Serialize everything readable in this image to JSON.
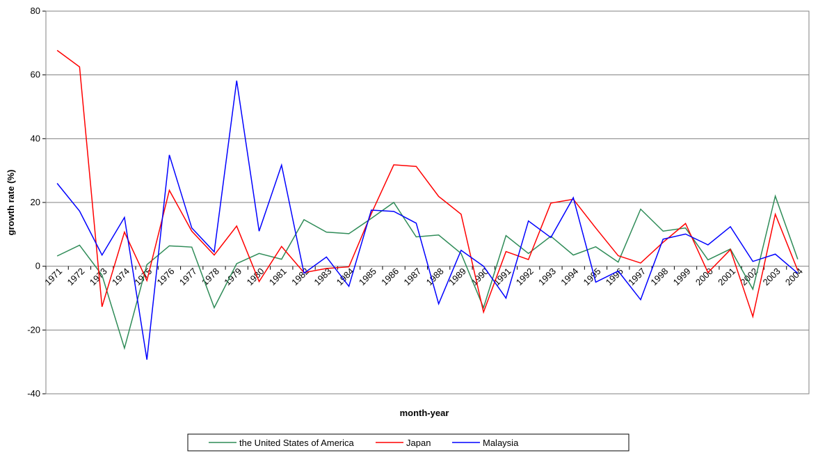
{
  "chart_data": {
    "type": "line",
    "x_label": "month-year",
    "y_label": "growth rate (%)",
    "categories": [
      "1971",
      "1972",
      "1973",
      "1974",
      "1975",
      "1976",
      "1977",
      "1978",
      "1979",
      "1980",
      "1981",
      "1982",
      "1983",
      "1984",
      "1985",
      "1986",
      "1987",
      "1988",
      "1989",
      "1990",
      "1991",
      "1992",
      "1993",
      "1994",
      "1995",
      "1996",
      "1997",
      "1998",
      "1999",
      "2000",
      "2001",
      "2002",
      "2003",
      "2004"
    ],
    "series": [
      {
        "name": "the United States of America",
        "color": "#2e8b57",
        "values": [
          3.2,
          6.6,
          -2.8,
          -25.7,
          0.5,
          6.4,
          6.0,
          -13,
          0.8,
          4,
          2.2,
          14.6,
          10.7,
          10.2,
          15,
          20,
          9.2,
          9.8,
          4,
          -13,
          9.6,
          4,
          9.4,
          3.5,
          6.1,
          1.3,
          17.9,
          11,
          12,
          2,
          5.4,
          -7.2,
          22,
          2.2
        ]
      },
      {
        "name": "Japan",
        "color": "#ff0000",
        "values": [
          67.7,
          62.5,
          -12.7,
          10.7,
          -4.5,
          23.8,
          11,
          3.5,
          12.6,
          -4.8,
          6.2,
          -2,
          -0.7,
          -0.2,
          16.5,
          31.8,
          31.3,
          21.9,
          16.3,
          -14.4,
          4.6,
          2.1,
          19.8,
          21,
          12,
          3.3,
          1,
          7.5,
          13.4,
          -2,
          5.2,
          -15.8,
          16.3,
          -1.3
        ]
      },
      {
        "name": "Malaysia",
        "color": "#0000ff",
        "values": [
          26,
          17.3,
          3.5,
          15.3,
          -29.3,
          34.9,
          12,
          4.5,
          58.2,
          11,
          31.7,
          -2.2,
          2.9,
          -6.3,
          17.6,
          17.2,
          13.5,
          -11.8,
          5,
          0,
          -10,
          14.2,
          9,
          21.5,
          -5,
          -1.5,
          -10.5,
          8.5,
          10.1,
          6.7,
          12.4,
          1.5,
          3.8,
          -2.2
        ]
      }
    ],
    "ylim": [
      -40,
      80
    ],
    "yticks": [
      -40,
      -20,
      0,
      20,
      40,
      60,
      80
    ],
    "grid": true
  }
}
